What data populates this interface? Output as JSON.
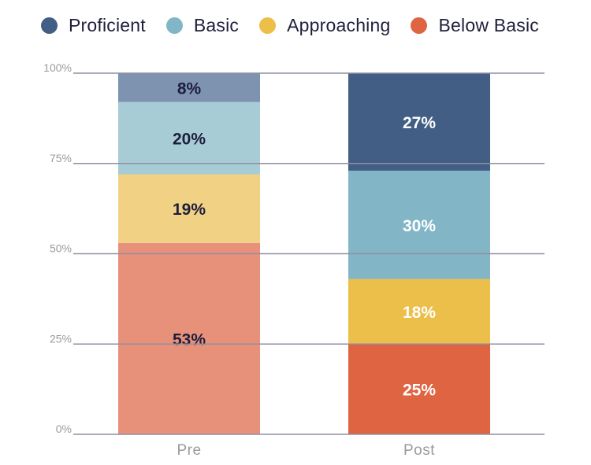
{
  "chart_data": {
    "type": "bar",
    "stacked": true,
    "categories": [
      "Pre",
      "Post"
    ],
    "series": [
      {
        "name": "Below Basic",
        "values": [
          53,
          25
        ],
        "colors": [
          "#e8917a",
          "#df6442"
        ],
        "label_colors": [
          "#1e1e3c",
          "#ffffff"
        ]
      },
      {
        "name": "Approaching",
        "values": [
          19,
          18
        ],
        "colors": [
          "#f1d184",
          "#ecbf4a"
        ],
        "label_colors": [
          "#1e1e3c",
          "#ffffff"
        ]
      },
      {
        "name": "Basic",
        "values": [
          20,
          30
        ],
        "colors": [
          "#a8ccd6",
          "#82b6c7"
        ],
        "label_colors": [
          "#1e1e3c",
          "#ffffff"
        ]
      },
      {
        "name": "Proficient",
        "values": [
          8,
          27
        ],
        "colors": [
          "#7e93b0",
          "#425e85"
        ],
        "label_colors": [
          "#1e1e3c",
          "#ffffff"
        ]
      }
    ],
    "yticks": [
      "0%",
      "25%",
      "50%",
      "75%",
      "100%"
    ],
    "ylim": [
      0,
      100
    ],
    "grid": true,
    "legend": {
      "position": "top",
      "entries": [
        {
          "name": "Proficient",
          "color": "#425e85"
        },
        {
          "name": "Basic",
          "color": "#82b6c7"
        },
        {
          "name": "Approaching",
          "color": "#ecbf4a"
        },
        {
          "name": "Below Basic",
          "color": "#df6442"
        }
      ]
    }
  }
}
